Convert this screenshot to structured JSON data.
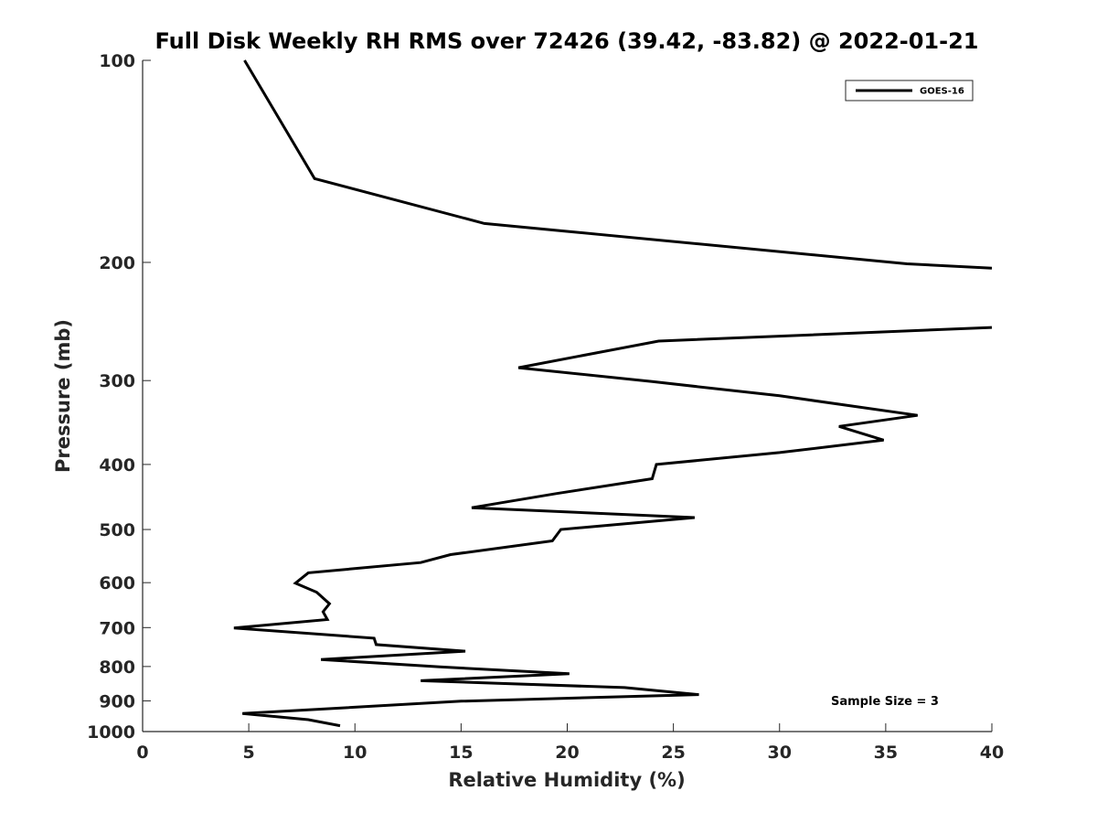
{
  "chart_data": {
    "type": "line",
    "title": "Full Disk Weekly RH RMS over 72426 (39.42, -83.82) @ 2022-01-21",
    "xlabel": "Relative Humidity (%)",
    "ylabel": "Pressure (mb)",
    "xlim": [
      0,
      40
    ],
    "ylim": [
      100,
      1000
    ],
    "y_scale": "log",
    "y_reversed": true,
    "grid": false,
    "legend_position": "top-right",
    "x_ticks": [
      "0",
      "5",
      "10",
      "15",
      "20",
      "25",
      "30",
      "35",
      "40"
    ],
    "y_ticks": [
      "100",
      "200",
      "300",
      "400",
      "500",
      "600",
      "700",
      "800",
      "900",
      "1000"
    ],
    "x_tick_values": [
      0,
      5,
      10,
      15,
      20,
      25,
      30,
      35,
      40
    ],
    "y_tick_values": [
      100,
      200,
      300,
      400,
      500,
      600,
      700,
      800,
      900,
      1000
    ],
    "annotation": "Sample Size = 3",
    "series": [
      {
        "name": "GOES-16",
        "color": "#000000",
        "segments": [
          [
            {
              "x": 4.8,
              "y": 100
            },
            {
              "x": 8.1,
              "y": 150
            },
            {
              "x": 16.1,
              "y": 175
            },
            {
              "x": 36.0,
              "y": 201
            },
            {
              "x": 40.0,
              "y": 204
            }
          ],
          [
            {
              "x": 40.0,
              "y": 250
            },
            {
              "x": 24.3,
              "y": 262
            },
            {
              "x": 17.7,
              "y": 287
            },
            {
              "x": 24.0,
              "y": 301
            },
            {
              "x": 30.0,
              "y": 316
            },
            {
              "x": 36.5,
              "y": 338
            },
            {
              "x": 32.8,
              "y": 351
            },
            {
              "x": 34.9,
              "y": 368
            },
            {
              "x": 30.0,
              "y": 384
            },
            {
              "x": 24.2,
              "y": 400
            },
            {
              "x": 24.0,
              "y": 420
            },
            {
              "x": 19.5,
              "y": 442
            },
            {
              "x": 15.5,
              "y": 464
            },
            {
              "x": 26.0,
              "y": 480
            },
            {
              "x": 19.7,
              "y": 500
            },
            {
              "x": 19.3,
              "y": 520
            },
            {
              "x": 14.5,
              "y": 545
            },
            {
              "x": 13.1,
              "y": 560
            },
            {
              "x": 7.8,
              "y": 580
            },
            {
              "x": 7.2,
              "y": 601
            },
            {
              "x": 8.2,
              "y": 620
            },
            {
              "x": 8.8,
              "y": 645
            },
            {
              "x": 8.5,
              "y": 663
            },
            {
              "x": 8.7,
              "y": 681
            },
            {
              "x": 4.3,
              "y": 701
            },
            {
              "x": 10.9,
              "y": 726
            },
            {
              "x": 11.0,
              "y": 742
            },
            {
              "x": 15.2,
              "y": 759
            },
            {
              "x": 8.4,
              "y": 781
            },
            {
              "x": 14.0,
              "y": 801
            },
            {
              "x": 20.1,
              "y": 820
            },
            {
              "x": 13.1,
              "y": 840
            },
            {
              "x": 22.7,
              "y": 860
            },
            {
              "x": 26.2,
              "y": 881
            },
            {
              "x": 15.0,
              "y": 901
            },
            {
              "x": 4.7,
              "y": 940
            },
            {
              "x": 7.8,
              "y": 960
            },
            {
              "x": 9.3,
              "y": 980
            }
          ]
        ]
      }
    ]
  }
}
